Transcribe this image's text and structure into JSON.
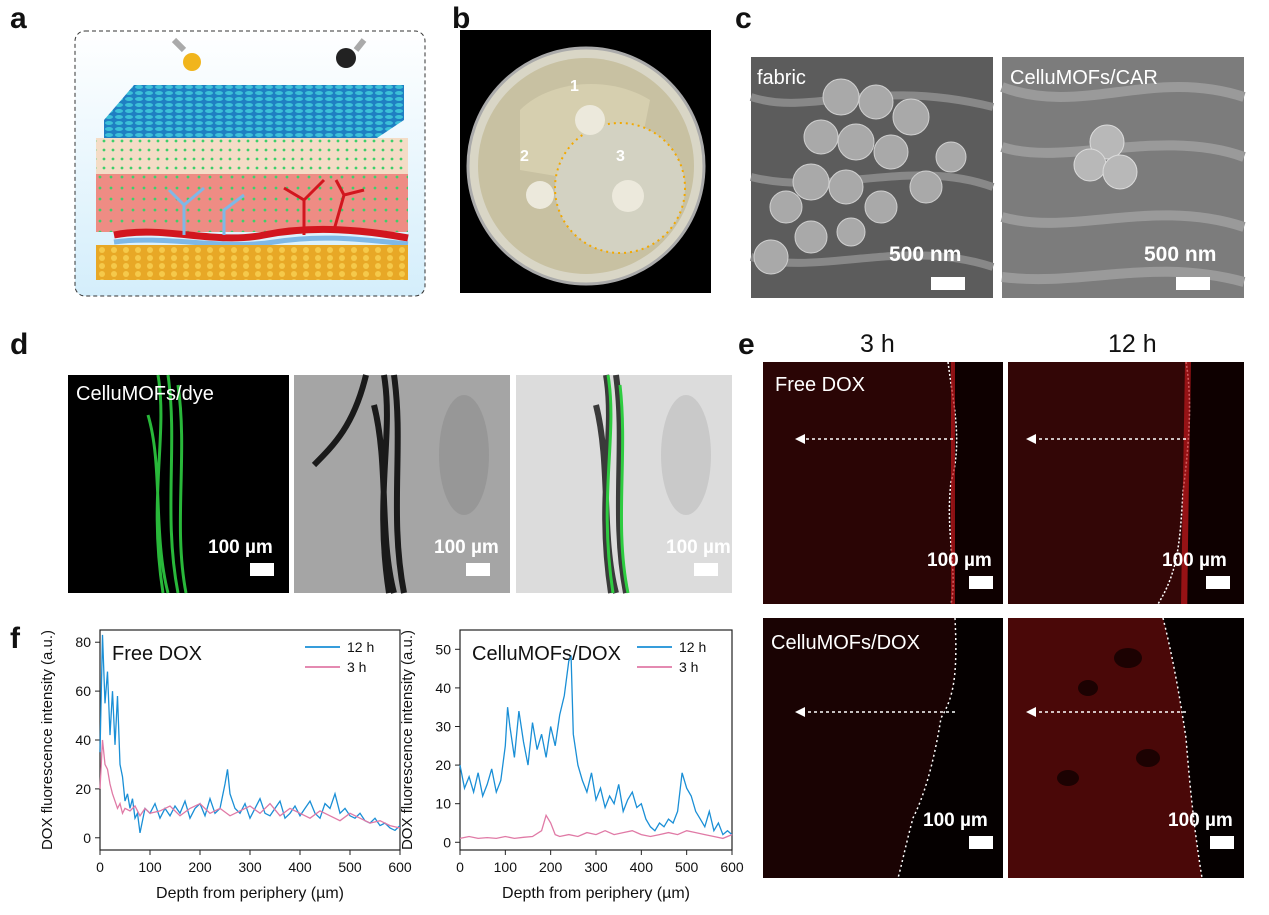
{
  "panel_labels": {
    "a": "a",
    "b": "b",
    "c": "c",
    "d": "d",
    "e": "e",
    "f": "f"
  },
  "panel_b": {
    "spot1": "1",
    "spot2": "2",
    "spot3": "3"
  },
  "panel_c": {
    "left_label": "fabric",
    "right_label": "CelluMOFs/CAR",
    "scale_left": "500 nm",
    "scale_right": "500 nm"
  },
  "panel_d": {
    "label": "CelluMOFs/dye",
    "scale1": "100 µm",
    "scale2": "100 µm",
    "scale3": "100 µm"
  },
  "panel_e": {
    "col1": "3 h",
    "col2": "12 h",
    "row1": "Free DOX",
    "row2": "CelluMOFs/DOX",
    "scale_tl": "100 µm",
    "scale_tr": "100 µm",
    "scale_bl": "100 µm",
    "scale_br": "100 µm"
  },
  "colors": {
    "series_12h": "#1a8fd6",
    "series_3h": "#e07aa6",
    "dox_red": "#c0181c",
    "fluor_green": "#2ecc40"
  },
  "chart_data": [
    {
      "type": "line",
      "title": "Free DOX",
      "xlabel": "Depth from periphery (µm)",
      "ylabel": "DOX fluorescence intensity (a.u.)",
      "xlim": [
        0,
        600
      ],
      "ylim": [
        -5,
        85
      ],
      "xticks": [
        0,
        100,
        200,
        300,
        400,
        500,
        600
      ],
      "yticks": [
        0,
        20,
        40,
        60,
        80
      ],
      "legend_position": "top-right",
      "series": [
        {
          "name": "12 h",
          "color": "#1a8fd6",
          "x": [
            0,
            5,
            10,
            15,
            20,
            25,
            30,
            35,
            40,
            45,
            50,
            55,
            60,
            65,
            70,
            75,
            80,
            90,
            100,
            110,
            120,
            130,
            140,
            150,
            160,
            170,
            180,
            190,
            200,
            210,
            220,
            230,
            240,
            250,
            255,
            260,
            270,
            280,
            290,
            300,
            310,
            320,
            330,
            340,
            350,
            360,
            370,
            380,
            390,
            400,
            410,
            420,
            430,
            440,
            450,
            460,
            470,
            480,
            490,
            500,
            510,
            520,
            530,
            540,
            550,
            560,
            570,
            580,
            590,
            600
          ],
          "y": [
            35,
            83,
            55,
            68,
            42,
            60,
            38,
            58,
            30,
            25,
            15,
            18,
            12,
            16,
            8,
            10,
            2,
            12,
            10,
            14,
            8,
            12,
            9,
            13,
            10,
            15,
            8,
            12,
            14,
            9,
            16,
            10,
            12,
            22,
            28,
            18,
            12,
            10,
            14,
            8,
            12,
            16,
            10,
            9,
            12,
            15,
            8,
            10,
            13,
            9,
            12,
            15,
            10,
            8,
            14,
            12,
            18,
            10,
            12,
            9,
            8,
            10,
            7,
            6,
            8,
            5,
            6,
            4,
            3,
            5
          ]
        },
        {
          "name": "3 h",
          "color": "#e07aa6",
          "x": [
            0,
            5,
            10,
            15,
            20,
            25,
            30,
            35,
            40,
            45,
            50,
            60,
            70,
            80,
            90,
            100,
            120,
            140,
            160,
            180,
            200,
            220,
            240,
            260,
            280,
            300,
            320,
            340,
            360,
            380,
            400,
            420,
            440,
            460,
            480,
            500,
            520,
            540,
            560,
            580,
            600
          ],
          "y": [
            20,
            40,
            30,
            28,
            22,
            18,
            15,
            12,
            14,
            10,
            12,
            11,
            13,
            9,
            12,
            10,
            11,
            13,
            9,
            12,
            14,
            10,
            12,
            9,
            11,
            13,
            10,
            14,
            9,
            12,
            10,
            8,
            11,
            9,
            7,
            10,
            8,
            6,
            7,
            5,
            4
          ]
        }
      ]
    },
    {
      "type": "line",
      "title": "CelluMOFs/DOX",
      "xlabel": "Depth from periphery (µm)",
      "ylabel": "DOX fluorescence intensity (a.u.)",
      "xlim": [
        0,
        600
      ],
      "ylim": [
        -2,
        55
      ],
      "xticks": [
        0,
        100,
        200,
        300,
        400,
        500,
        600
      ],
      "yticks": [
        0,
        10,
        20,
        30,
        40,
        50
      ],
      "legend_position": "top-right",
      "series": [
        {
          "name": "12 h",
          "color": "#1a8fd6",
          "x": [
            0,
            10,
            20,
            30,
            40,
            50,
            60,
            70,
            80,
            90,
            100,
            105,
            110,
            120,
            130,
            140,
            150,
            160,
            170,
            180,
            190,
            200,
            210,
            220,
            230,
            240,
            245,
            250,
            260,
            270,
            280,
            290,
            300,
            310,
            320,
            330,
            340,
            350,
            360,
            370,
            380,
            390,
            400,
            410,
            420,
            430,
            440,
            450,
            460,
            470,
            480,
            490,
            500,
            510,
            520,
            530,
            540,
            550,
            560,
            570,
            580,
            590,
            600
          ],
          "y": [
            20,
            14,
            17,
            13,
            18,
            12,
            15,
            19,
            13,
            16,
            25,
            35,
            30,
            22,
            34,
            26,
            20,
            31,
            24,
            28,
            22,
            30,
            25,
            33,
            38,
            47,
            48,
            28,
            20,
            16,
            13,
            18,
            11,
            14,
            9,
            12,
            10,
            15,
            8,
            11,
            13,
            9,
            10,
            6,
            4,
            3,
            5,
            4,
            6,
            5,
            8,
            18,
            14,
            12,
            8,
            6,
            4,
            8,
            3,
            5,
            2,
            3,
            2
          ]
        },
        {
          "name": "3 h",
          "color": "#e07aa6",
          "x": [
            0,
            20,
            40,
            60,
            80,
            100,
            120,
            140,
            160,
            180,
            190,
            200,
            210,
            220,
            240,
            260,
            280,
            300,
            320,
            340,
            360,
            380,
            400,
            420,
            440,
            460,
            480,
            500,
            520,
            540,
            560,
            580,
            600
          ],
          "y": [
            1,
            1.5,
            1,
            1.2,
            1,
            1.5,
            1,
            1.3,
            1.5,
            3,
            7,
            5,
            2,
            1.5,
            2,
            1.5,
            2.5,
            2,
            3,
            2,
            2.5,
            3,
            2,
            1.5,
            2,
            2.5,
            2,
            3,
            2.5,
            2,
            1.5,
            1,
            2
          ]
        }
      ]
    }
  ]
}
